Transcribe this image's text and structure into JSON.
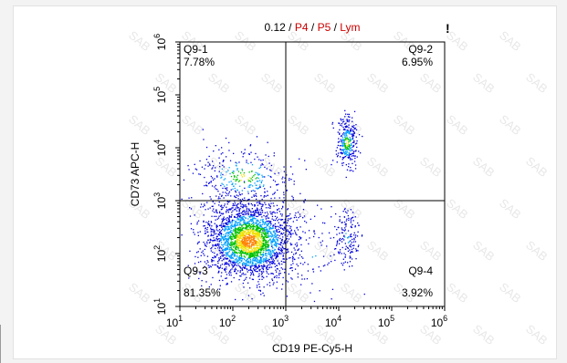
{
  "chart_data": {
    "type": "scatter",
    "title": {
      "value": "0.12",
      "separator": " / ",
      "gates": [
        {
          "label": "P4",
          "color": "#cc0000"
        },
        {
          "label": "P5",
          "color": "#cc0000"
        },
        {
          "label": "Lym",
          "color": "#cc0000"
        }
      ]
    },
    "xlabel": "CD19 PE-Cy5-H",
    "ylabel": "CD73 APC-H",
    "xscale": "log",
    "yscale": "log",
    "xlim": [
      10,
      1000000
    ],
    "ylim": [
      10,
      1000000
    ],
    "x_ticks": [
      {
        "base": "10",
        "exp": "1"
      },
      {
        "base": "10",
        "exp": "2"
      },
      {
        "base": "10",
        "exp": "3"
      },
      {
        "base": "10",
        "exp": "4"
      },
      {
        "base": "10",
        "exp": "5"
      },
      {
        "base": "10",
        "exp": "6"
      }
    ],
    "y_ticks": [
      {
        "base": "10",
        "exp": "1"
      },
      {
        "base": "10",
        "exp": "2"
      },
      {
        "base": "10",
        "exp": "3"
      },
      {
        "base": "10",
        "exp": "4"
      },
      {
        "base": "10",
        "exp": "5"
      },
      {
        "base": "10",
        "exp": "6"
      }
    ],
    "quadrant_gate": {
      "x": 1000,
      "y": 1000
    },
    "quadrants": [
      {
        "name": "Q9-1",
        "percent": "7.78%"
      },
      {
        "name": "Q9-2",
        "percent": "6.95%"
      },
      {
        "name": "Q9-3",
        "percent": "81.35%"
      },
      {
        "name": "Q9-4",
        "percent": "3.92%"
      }
    ],
    "populations": [
      {
        "center_log": [
          2.3,
          2.25
        ],
        "spread_log": [
          0.42,
          0.36
        ],
        "count": 2600
      },
      {
        "center_log": [
          2.2,
          3.45
        ],
        "spread_log": [
          0.5,
          0.28
        ],
        "count": 330
      },
      {
        "center_log": [
          4.15,
          4.1
        ],
        "spread_log": [
          0.1,
          0.24
        ],
        "count": 300
      },
      {
        "center_log": [
          4.15,
          2.3
        ],
        "spread_log": [
          0.12,
          0.3
        ],
        "count": 150
      },
      {
        "center_log": [
          3.4,
          2.0
        ],
        "spread_log": [
          0.5,
          0.45
        ],
        "count": 80
      }
    ],
    "density_colors": [
      "#0000dd",
      "#00a0ff",
      "#00c000",
      "#f0e000",
      "#ff8000"
    ],
    "watermark": "SAB",
    "corner_mark": "!",
    "grid": false
  }
}
